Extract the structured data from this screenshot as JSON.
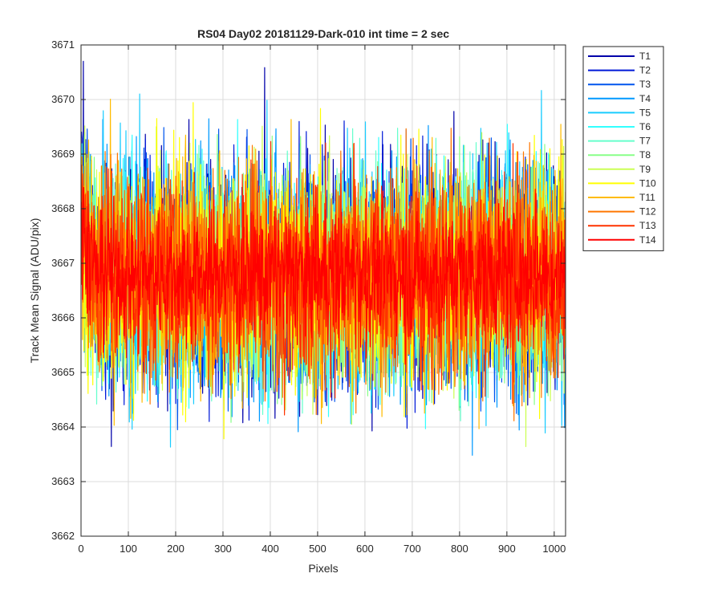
{
  "chart_data": {
    "type": "line",
    "title": "RS04 Day02 20181129-Dark-010 int time = 2 sec",
    "xlabel": "Pixels",
    "ylabel": "Track Mean Signal (ADU/pix)",
    "xlim": [
      0,
      1024
    ],
    "ylim": [
      3662,
      3671
    ],
    "xticks": [
      0,
      100,
      200,
      300,
      400,
      500,
      600,
      700,
      800,
      900,
      1000
    ],
    "yticks": [
      3662,
      3663,
      3664,
      3665,
      3666,
      3667,
      3668,
      3669,
      3670,
      3671
    ],
    "grid": true,
    "legend_position": "outside-top-right",
    "n_points": 1024,
    "series": [
      {
        "name": "T1",
        "color": "#0000aa",
        "mean": 3666.9,
        "sd": 1.05
      },
      {
        "name": "T2",
        "color": "#0019d8",
        "mean": 3666.8,
        "sd": 1.05
      },
      {
        "name": "T3",
        "color": "#0055ee",
        "mean": 3666.8,
        "sd": 1.05
      },
      {
        "name": "T4",
        "color": "#0099ff",
        "mean": 3666.8,
        "sd": 1.05
      },
      {
        "name": "T5",
        "color": "#19ccff",
        "mean": 3666.8,
        "sd": 1.05
      },
      {
        "name": "T6",
        "color": "#33ffff",
        "mean": 3666.8,
        "sd": 1.0
      },
      {
        "name": "T7",
        "color": "#66ffcc",
        "mean": 3666.8,
        "sd": 1.0
      },
      {
        "name": "T8",
        "color": "#88ff88",
        "mean": 3666.8,
        "sd": 1.0
      },
      {
        "name": "T9",
        "color": "#ccff55",
        "mean": 3666.8,
        "sd": 1.0
      },
      {
        "name": "T10",
        "color": "#ffff00",
        "mean": 3666.8,
        "sd": 1.0
      },
      {
        "name": "T11",
        "color": "#ffbb00",
        "mean": 3666.8,
        "sd": 1.0
      },
      {
        "name": "T12",
        "color": "#ff7700",
        "mean": 3666.8,
        "sd": 1.0
      },
      {
        "name": "T13",
        "color": "#ff3300",
        "mean": 3666.8,
        "sd": 0.95
      },
      {
        "name": "T14",
        "color": "#ff0000",
        "mean": 3666.8,
        "sd": 0.6
      }
    ]
  }
}
